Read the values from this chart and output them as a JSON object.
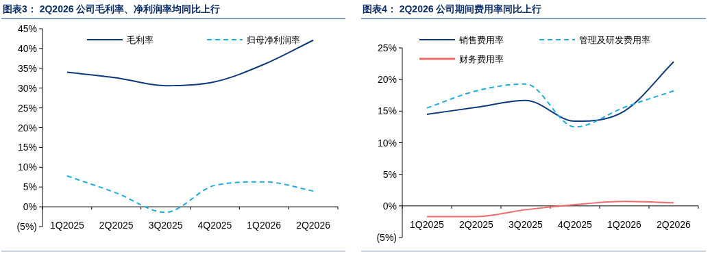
{
  "chart_data": [
    {
      "type": "line",
      "title": "图表3：  2Q2026 公司毛利率、净利润率均同比上行",
      "categories": [
        "1Q2025",
        "2Q2025",
        "3Q2025",
        "4Q2025",
        "1Q2026",
        "2Q2026"
      ],
      "series": [
        {
          "name": "毛利率",
          "color": "#0b3a7e",
          "line_style": "solid",
          "values": [
            34.0,
            32.6,
            30.6,
            31.6,
            36.0,
            42.1
          ]
        },
        {
          "name": "归母净利润率",
          "color": "#1aade6",
          "line_style": "dashed",
          "values": [
            7.8,
            3.5,
            -1.4,
            5.4,
            6.3,
            4.0
          ]
        }
      ],
      "ylim": [
        -5,
        45
      ],
      "yticks": [
        {
          "value": -5,
          "label": "(5%)"
        },
        {
          "value": 0,
          "label": "0%"
        },
        {
          "value": 5,
          "label": "5%"
        },
        {
          "value": 10,
          "label": "10%"
        },
        {
          "value": 15,
          "label": "15%"
        },
        {
          "value": 20,
          "label": "20%"
        },
        {
          "value": 25,
          "label": "25%"
        },
        {
          "value": 30,
          "label": "30%"
        },
        {
          "value": 35,
          "label": "35%"
        },
        {
          "value": 40,
          "label": "40%"
        },
        {
          "value": 45,
          "label": "45%"
        }
      ],
      "legend": "top",
      "grid": false
    },
    {
      "type": "line",
      "title": "图表4：  2Q2026 公司期间费用率同比上行",
      "categories": [
        "1Q2025",
        "2Q2025",
        "3Q2025",
        "4Q2025",
        "1Q2026",
        "2Q2026"
      ],
      "series": [
        {
          "name": "销售费用率",
          "color": "#0b3a7e",
          "line_style": "solid",
          "values": [
            14.5,
            15.6,
            16.7,
            13.4,
            15.0,
            22.8
          ]
        },
        {
          "name": "管理及研发费用率",
          "color": "#1aade6",
          "line_style": "dashed",
          "values": [
            15.5,
            18.2,
            19.3,
            12.5,
            15.6,
            18.2
          ]
        },
        {
          "name": "财务费用率",
          "color": "#f26b6b",
          "line_style": "solid",
          "values": [
            -1.7,
            -1.7,
            -0.6,
            0.2,
            0.7,
            0.5
          ]
        }
      ],
      "ylim": [
        -5,
        25
      ],
      "yticks": [
        {
          "value": -5,
          "label": "(5%)"
        },
        {
          "value": 0,
          "label": "0%"
        },
        {
          "value": 5,
          "label": "5%"
        },
        {
          "value": 10,
          "label": "10%"
        },
        {
          "value": 15,
          "label": "15%"
        },
        {
          "value": 20,
          "label": "20%"
        },
        {
          "value": 25,
          "label": "25%"
        }
      ],
      "legend": "top",
      "grid": false
    }
  ]
}
